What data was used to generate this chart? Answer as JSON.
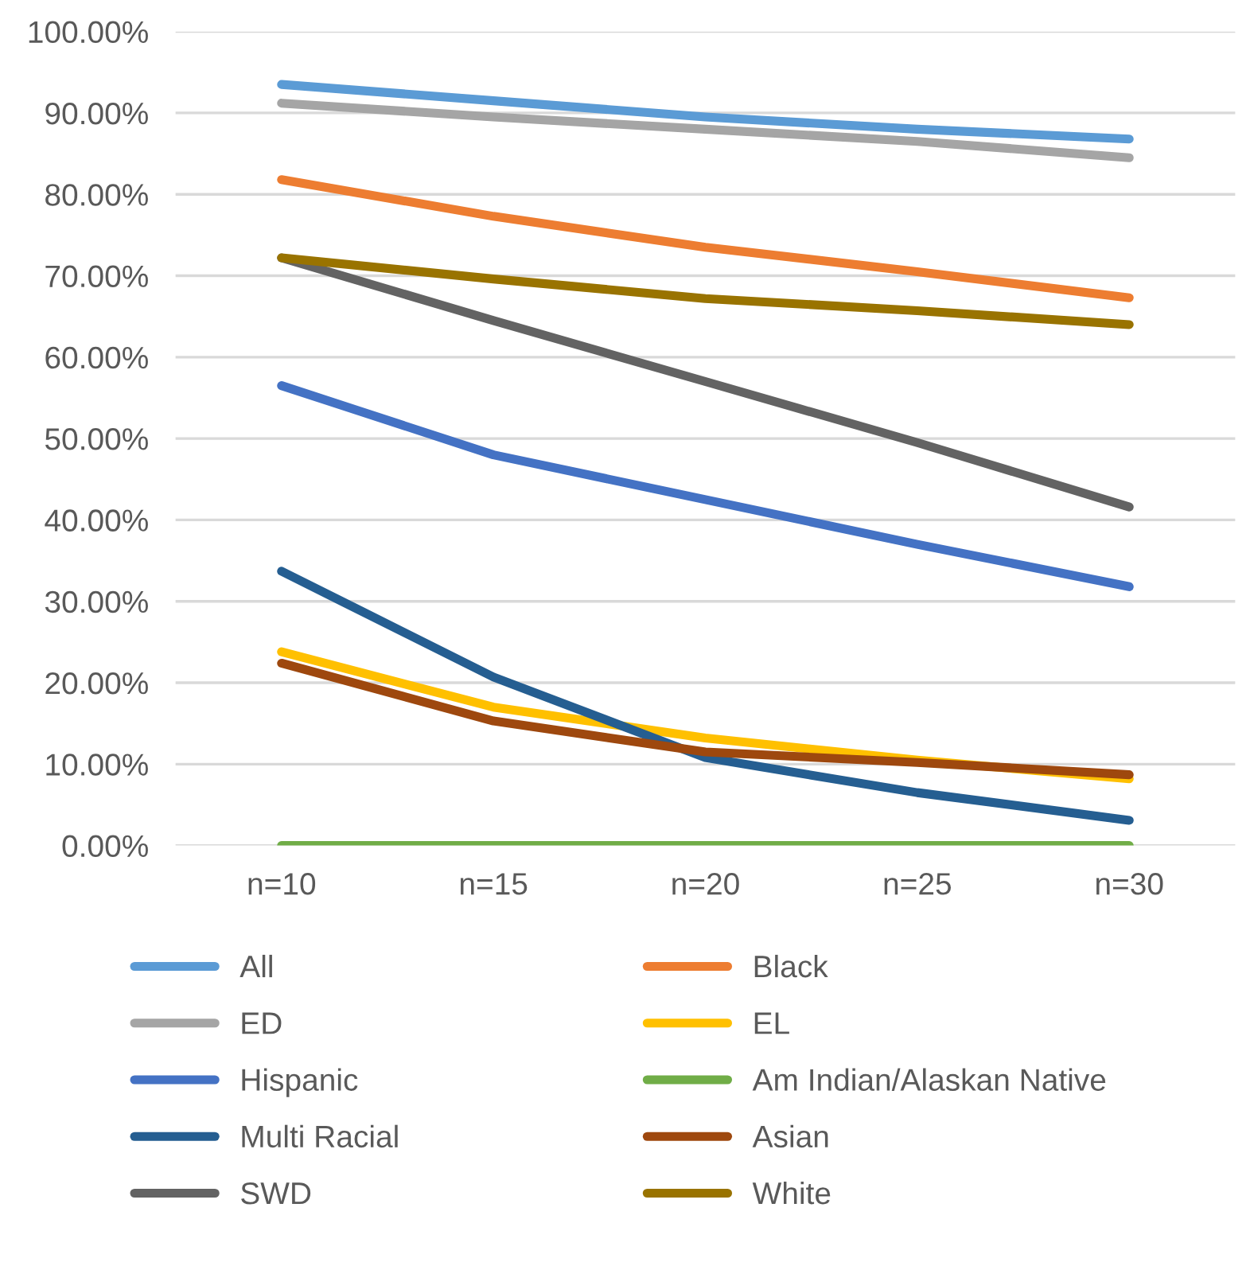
{
  "chart_data": {
    "type": "line",
    "categories": [
      "n=10",
      "n=15",
      "n=20",
      "n=25",
      "n=30"
    ],
    "series": [
      {
        "name": "All",
        "color": "#5b9bd5",
        "values": [
          93.5,
          91.5,
          89.5,
          88.0,
          86.8
        ]
      },
      {
        "name": "Black",
        "color": "#ed7d31",
        "values": [
          81.8,
          77.3,
          73.5,
          70.5,
          67.3
        ]
      },
      {
        "name": "ED",
        "color": "#a5a5a5",
        "values": [
          91.2,
          89.5,
          88.0,
          86.5,
          84.5
        ]
      },
      {
        "name": "EL",
        "color": "#ffc000",
        "values": [
          23.8,
          17.0,
          13.2,
          10.5,
          8.2
        ]
      },
      {
        "name": "Hispanic",
        "color": "#4472c4",
        "values": [
          56.5,
          48.0,
          42.5,
          37.0,
          31.8
        ]
      },
      {
        "name": "Am Indian/Alaskan Native",
        "color": "#70ad47",
        "values": [
          0,
          0,
          0,
          0,
          0
        ]
      },
      {
        "name": "Multi Racial",
        "color": "#255e91",
        "values": [
          33.7,
          20.7,
          10.8,
          6.5,
          3.1
        ]
      },
      {
        "name": "Asian",
        "color": "#9e480e",
        "values": [
          22.4,
          15.3,
          11.5,
          10.2,
          8.7
        ]
      },
      {
        "name": "SWD",
        "color": "#636363",
        "values": [
          72.2,
          64.5,
          57.0,
          49.5,
          41.6
        ]
      },
      {
        "name": "White",
        "color": "#997300",
        "values": [
          72.2,
          69.6,
          67.2,
          65.7,
          64.0
        ]
      }
    ],
    "ylim": [
      0,
      100
    ],
    "yticks": [
      {
        "value": 0,
        "label": "0.00%"
      },
      {
        "value": 10,
        "label": "10.00%"
      },
      {
        "value": 20,
        "label": "20.00%"
      },
      {
        "value": 30,
        "label": "30.00%"
      },
      {
        "value": 40,
        "label": "40.00%"
      },
      {
        "value": 50,
        "label": "50.00%"
      },
      {
        "value": 60,
        "label": "60.00%"
      },
      {
        "value": 70,
        "label": "70.00%"
      },
      {
        "value": 80,
        "label": "80.00%"
      },
      {
        "value": 90,
        "label": "90.00%"
      },
      {
        "value": 100,
        "label": "100.00%"
      }
    ],
    "grid": "y",
    "legend": "bottom",
    "marker": "none",
    "line_style": "solid"
  }
}
